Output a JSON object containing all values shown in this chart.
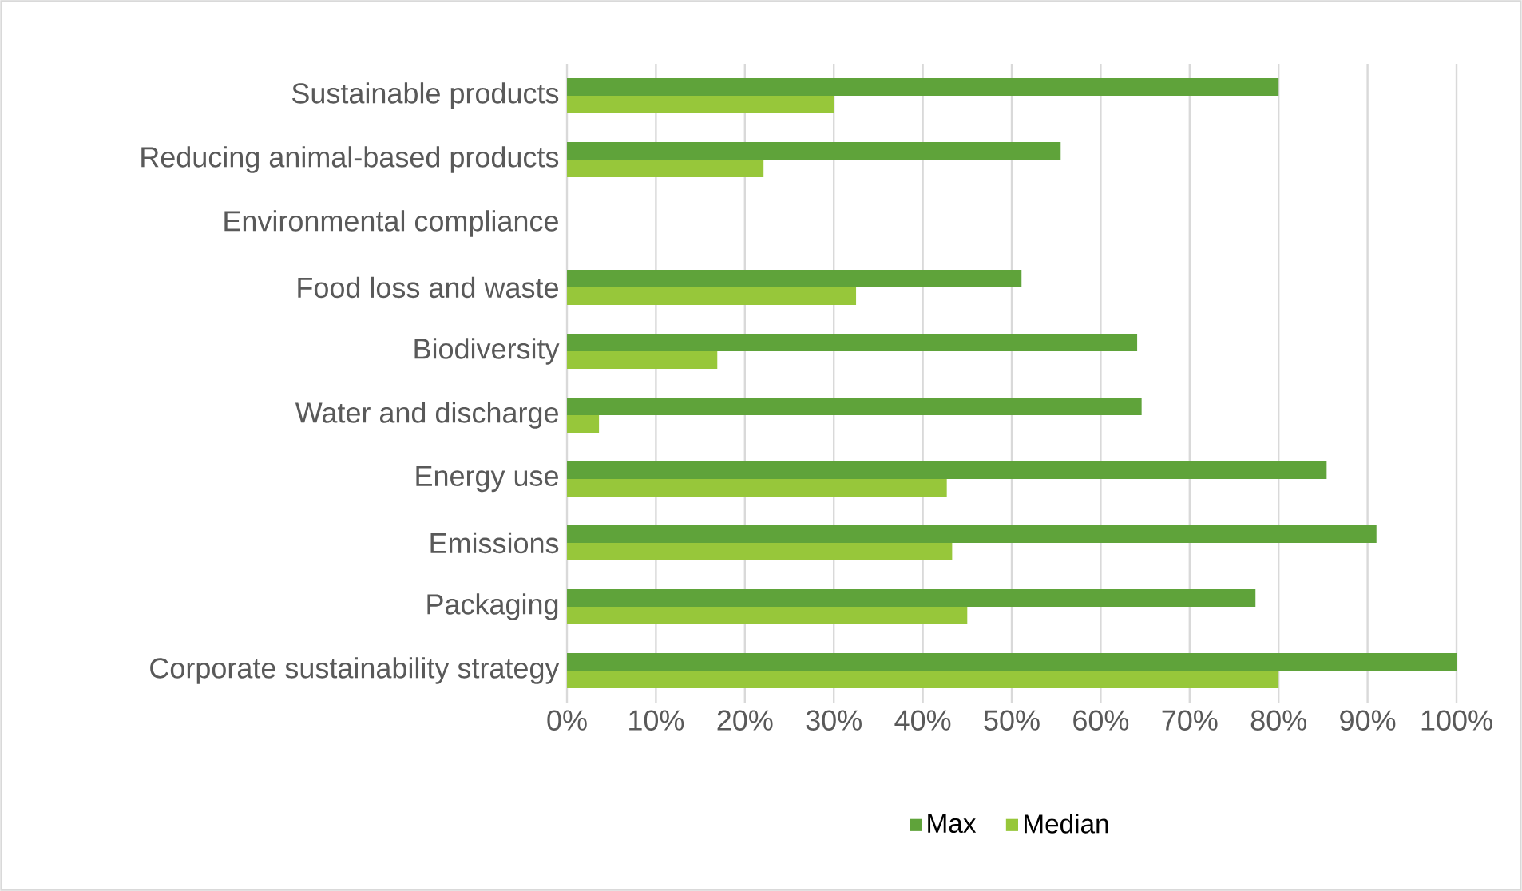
{
  "chart_data": {
    "type": "bar",
    "orientation": "horizontal",
    "categories": [
      "Sustainable products",
      "Reducing animal-based products",
      "Environmental compliance",
      "Food loss and waste",
      "Biodiversity",
      "Water and discharge",
      "Energy use",
      "Emissions",
      "Packaging",
      "Corporate sustainability strategy"
    ],
    "series": [
      {
        "name": "Max",
        "color": "#5fa33a",
        "values": [
          80,
          55.5,
          null,
          51.1,
          64.1,
          64.6,
          85.4,
          91,
          77.4,
          100
        ]
      },
      {
        "name": "Median",
        "color": "#97c73a",
        "values": [
          30,
          22.1,
          null,
          32.5,
          16.9,
          3.6,
          42.7,
          43.3,
          45,
          80
        ]
      }
    ],
    "xlim": [
      0,
      100
    ],
    "xticks": [
      {
        "value": 0,
        "label": "0%"
      },
      {
        "value": 10,
        "label": "10%"
      },
      {
        "value": 20,
        "label": "20%"
      },
      {
        "value": 30,
        "label": "30%"
      },
      {
        "value": 40,
        "label": "40%"
      },
      {
        "value": 50,
        "label": "50%"
      },
      {
        "value": 60,
        "label": "60%"
      },
      {
        "value": 70,
        "label": "70%"
      },
      {
        "value": 80,
        "label": "80%"
      },
      {
        "value": 90,
        "label": "90%"
      },
      {
        "value": 100,
        "label": "100%"
      }
    ],
    "grid": "x",
    "legend": "bottom"
  }
}
